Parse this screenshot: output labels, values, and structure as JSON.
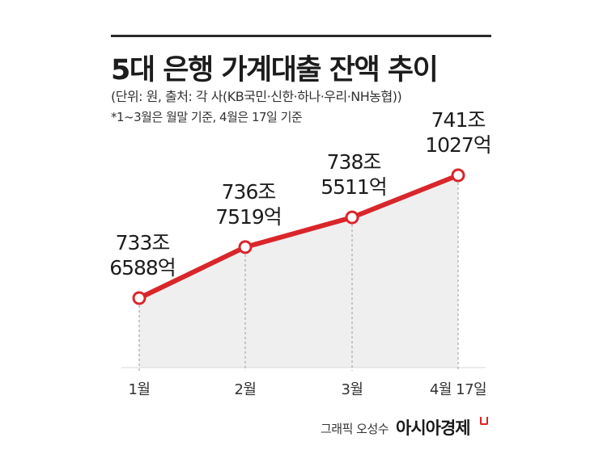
{
  "header": {
    "title": "5대 은행 가계대출 잔액 추이",
    "subtitle": "(단위: 원, 출처: 각 사(KB국민·신한·하나·우리·NH농협))",
    "note": "*1~3월은 월말 기준, 4월은 17일 기준"
  },
  "footer": {
    "credit": "그래픽 오성수",
    "brand": "아시아경제"
  },
  "colors": {
    "line": "#d9262b",
    "fill": "#efefef",
    "marker_fill": "#ffffff",
    "dashed": "#999999"
  },
  "chart_data": {
    "type": "line",
    "title": "5대 은행 가계대출 잔액 추이",
    "unit": "원",
    "categories": [
      "1월",
      "2월",
      "3월",
      "4월 17일"
    ],
    "values_eok": [
      7336588,
      7367519,
      7385511,
      7411027
    ],
    "labels_line1": [
      "733조",
      "736조",
      "738조",
      "741조"
    ],
    "labels_line2": [
      "6588억",
      "7519억",
      "5511억",
      "1027억"
    ],
    "markers": "open-circle",
    "area_fill": true,
    "drop_lines": "dashed"
  }
}
